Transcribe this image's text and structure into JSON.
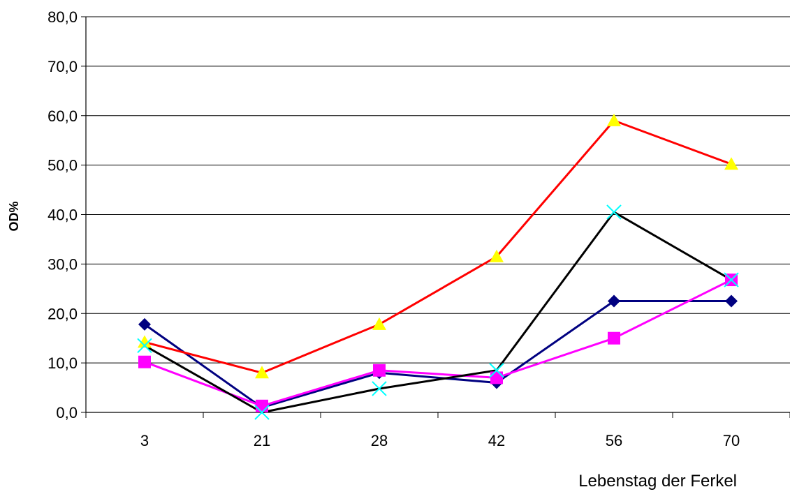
{
  "chart_data": {
    "type": "line",
    "title": "",
    "xlabel": "Lebenstag der Ferkel",
    "ylabel": "OD%",
    "categories": [
      "3",
      "21",
      "28",
      "42",
      "56",
      "70"
    ],
    "ylim": [
      0,
      80
    ],
    "yticks": [
      "0,0",
      "10,0",
      "20,0",
      "30,0",
      "40,0",
      "50,0",
      "60,0",
      "70,0",
      "80,0"
    ],
    "grid": true,
    "legend": "none",
    "series": [
      {
        "values": [
          17.8,
          1.0,
          8.0,
          6.0,
          22.5,
          22.5
        ],
        "line_color": "#000080",
        "marker": "diamond",
        "marker_color": "#000080"
      },
      {
        "values": [
          14.2,
          8.0,
          17.8,
          31.5,
          59.0,
          50.2
        ],
        "line_color": "#ff0000",
        "marker": "triangle",
        "marker_color": "#ffff00"
      },
      {
        "values": [
          10.2,
          1.3,
          8.5,
          7.0,
          15.0,
          26.8
        ],
        "line_color": "#ff00ff",
        "marker": "square",
        "marker_color": "#ff00ff"
      },
      {
        "values": [
          13.5,
          0.0,
          4.8,
          8.5,
          40.5,
          26.8
        ],
        "line_color": "#000000",
        "marker": "x",
        "marker_color": "#00ffff"
      }
    ]
  }
}
